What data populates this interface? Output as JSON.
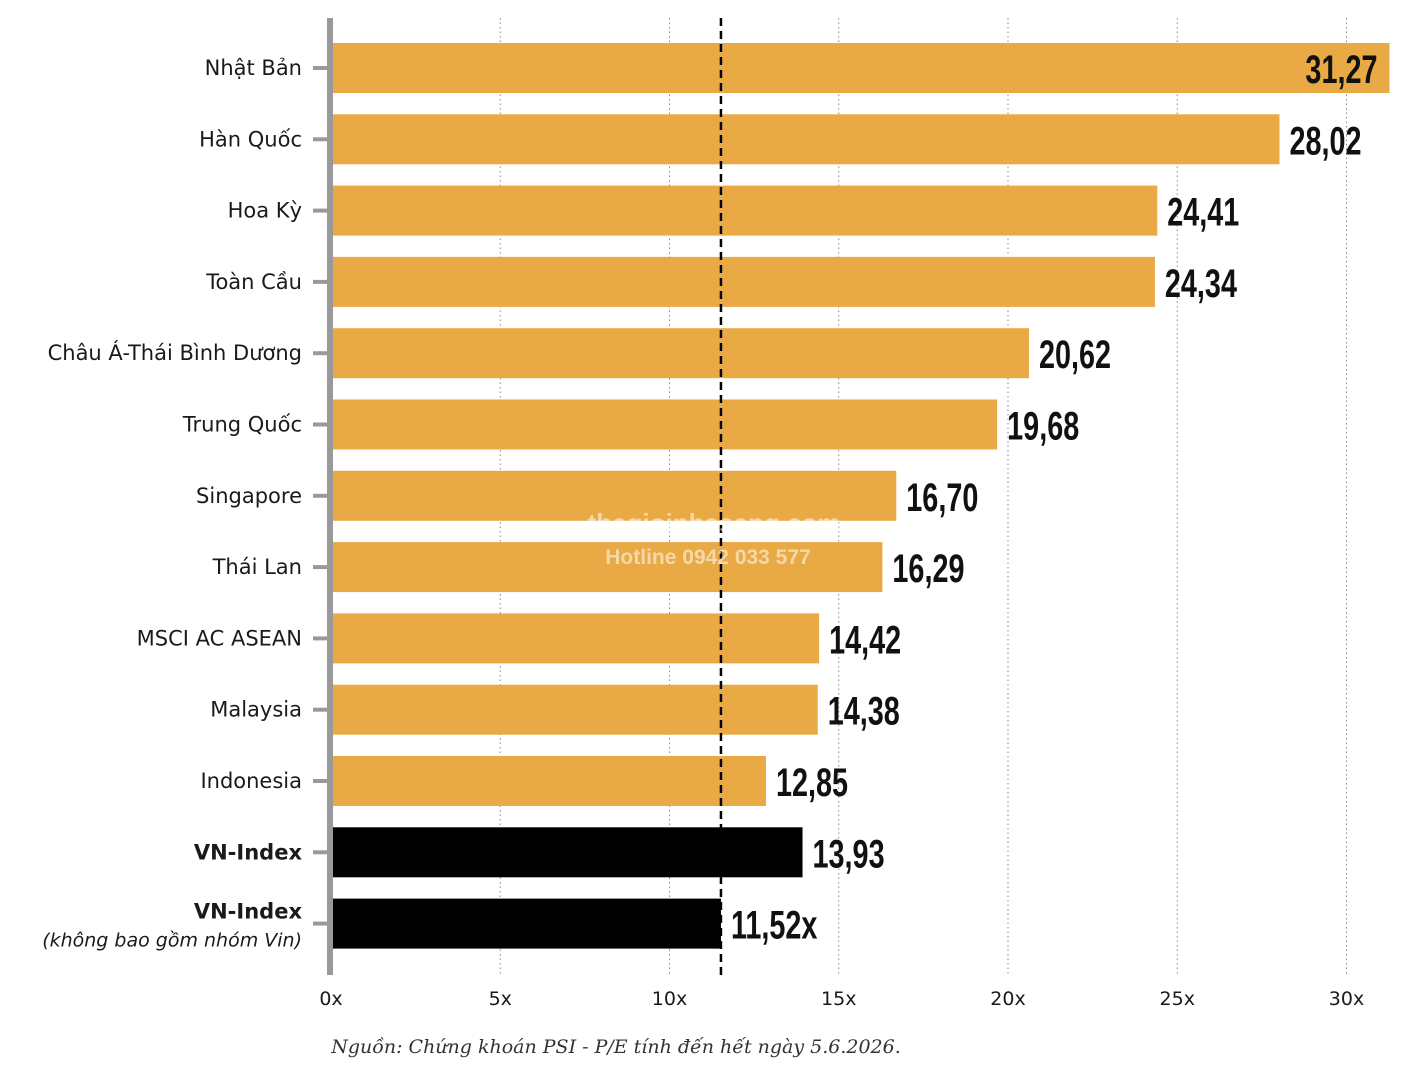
{
  "chart_data": {
    "type": "bar",
    "orientation": "horizontal",
    "categories": [
      "Nhật Bản",
      "Hàn Quốc",
      "Hoa Kỳ",
      "Toàn Cầu",
      "Châu Á-Thái Bình Dương",
      "Trung Quốc",
      "Singapore",
      "Thái Lan",
      "MSCI AC ASEAN",
      "Malaysia",
      "Indonesia",
      "VN-Index",
      "VN-Index"
    ],
    "category_notes": [
      "",
      "",
      "",
      "",
      "",
      "",
      "",
      "",
      "",
      "",
      "",
      "",
      "(không bao gồm nhóm Vin)"
    ],
    "values": [
      31.27,
      28.02,
      24.41,
      24.34,
      20.62,
      19.68,
      16.7,
      16.29,
      14.42,
      14.38,
      12.85,
      13.93,
      11.52
    ],
    "value_labels": [
      "31,27",
      "28,02",
      "24,41",
      "24,34",
      "20,62",
      "19,68",
      "16,70",
      "16,29",
      "14,42",
      "14,38",
      "12,85",
      "13,93",
      "11,52x"
    ],
    "highlight": [
      false,
      false,
      false,
      false,
      false,
      false,
      false,
      false,
      false,
      false,
      false,
      true,
      true
    ],
    "colors": {
      "bar": "#E9A944",
      "highlight_bar": "#000000",
      "axis": "#999999",
      "grid": "#888888",
      "reference_line": "#000000"
    },
    "xlim": [
      0,
      32
    ],
    "x_ticks": [
      0,
      5,
      10,
      15,
      20,
      25,
      30
    ],
    "x_tick_labels": [
      "0x",
      "5x",
      "10x",
      "15x",
      "20x",
      "25x",
      "30x"
    ],
    "grid": "vertical dotted",
    "reference_line": {
      "x": 11.52,
      "style": "dashed"
    },
    "title": "",
    "xlabel": "",
    "ylabel": ""
  },
  "source_note": "Nguồn: Chứng khoán PSI - P/E tính đến hết ngày 5.6.2026.",
  "watermark": {
    "site": "thegioinhasang.com",
    "hotline": "Hotline 0942 033 577"
  }
}
